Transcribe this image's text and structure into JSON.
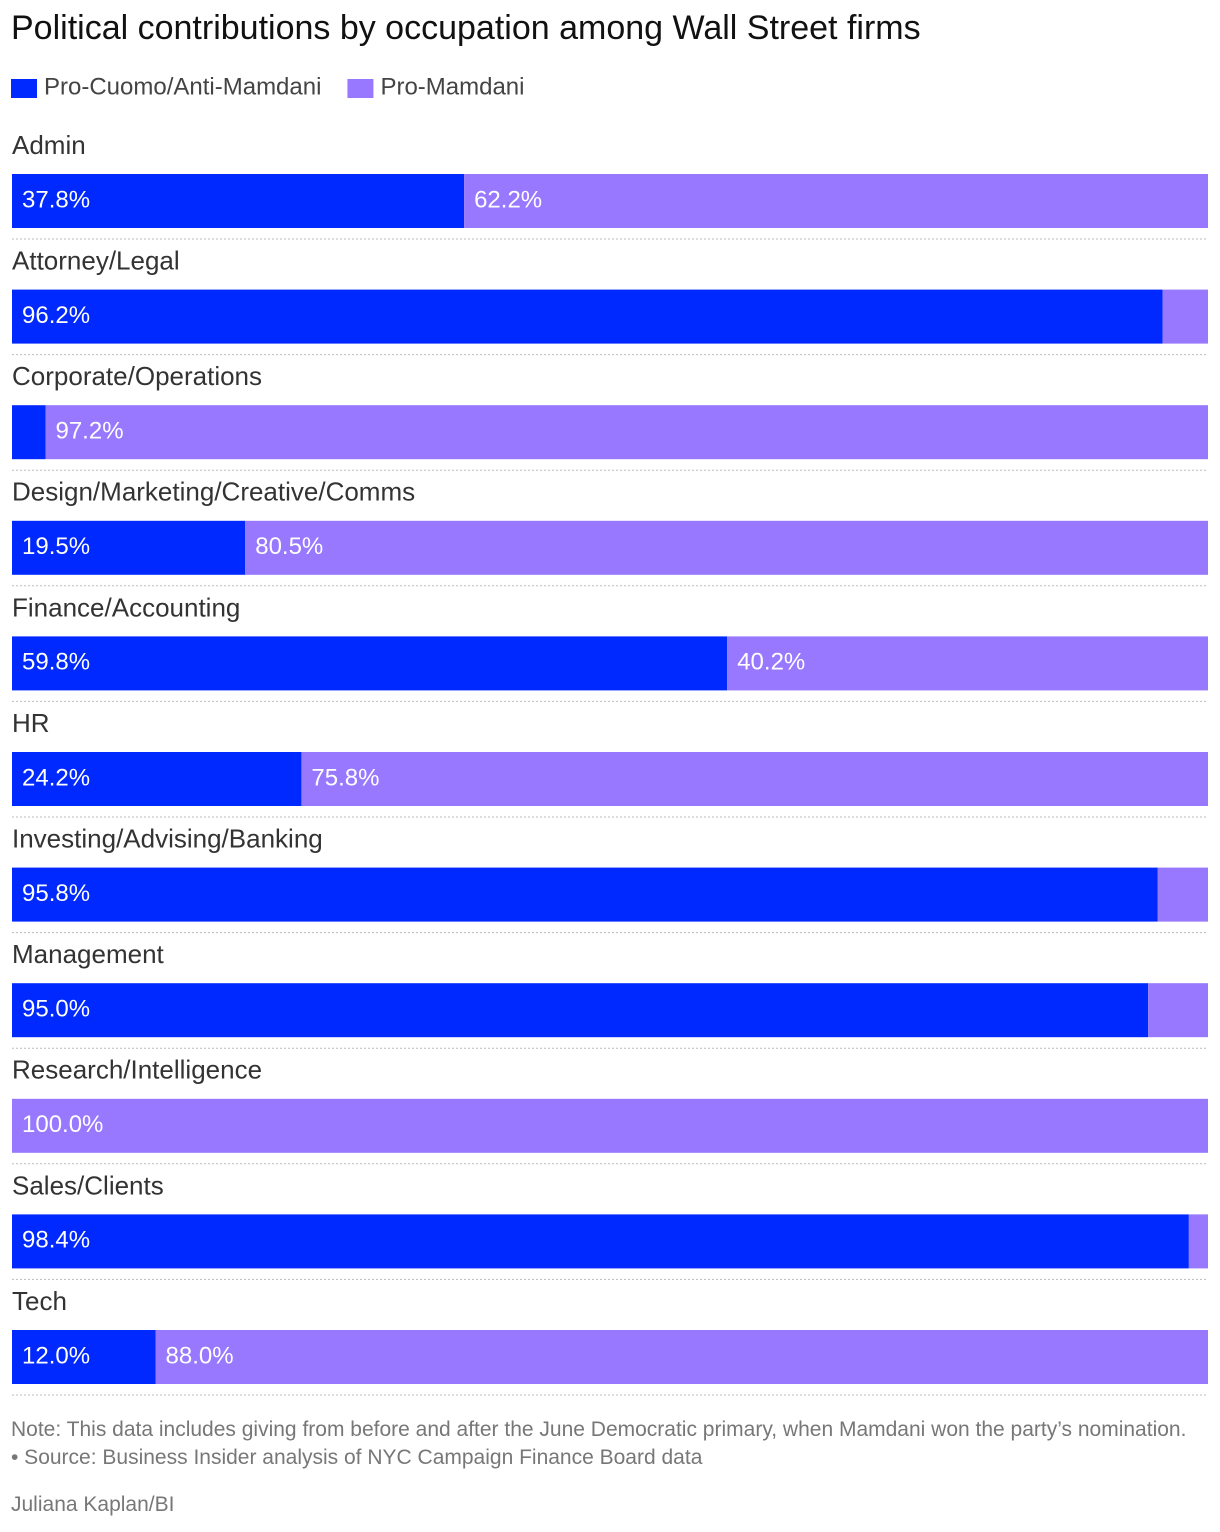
{
  "chart_data": {
    "type": "stacked-bar-100",
    "title": "Political contributions by occupation among Wall Street firms",
    "categories": [
      "Admin",
      "Attorney/Legal",
      "Corporate/Operations",
      "Design/Marketing/Creative/Comms",
      "Finance/Accounting",
      "HR",
      "Investing/Advising/Banking",
      "Management",
      "Research/Intelligence",
      "Sales/Clients",
      "Tech"
    ],
    "series": [
      {
        "name": "Pro-Cuomo/Anti-Mamdani",
        "color": "#0029ff",
        "values": [
          37.8,
          96.2,
          2.8,
          19.5,
          59.8,
          24.2,
          95.8,
          95.0,
          0,
          98.4,
          12.0
        ],
        "value_labels": [
          "37.8%",
          "96.2%",
          null,
          "19.5%",
          "59.8%",
          "24.2%",
          "95.8%",
          "95.0%",
          null,
          "98.4%",
          "12.0%"
        ]
      },
      {
        "name": "Pro-Mamdani",
        "color": "#9778ff",
        "values": [
          62.2,
          3.8,
          97.2,
          80.5,
          40.2,
          75.8,
          4.2,
          5.0,
          100.0,
          1.6,
          88.0
        ],
        "value_labels": [
          "62.2%",
          null,
          "97.2%",
          "80.5%",
          "40.2%",
          "75.8%",
          null,
          null,
          "100.0%",
          null,
          "88.0%"
        ]
      }
    ],
    "xlim": [
      0,
      100
    ],
    "legend": "top-left",
    "note": "Note: This data includes giving from before and after the June Democratic primary, when Mamdani won the party’s nomination. • Source: Business Insider analysis of NYC Campaign Finance Board data",
    "credit": "Juliana Kaplan/BI"
  }
}
